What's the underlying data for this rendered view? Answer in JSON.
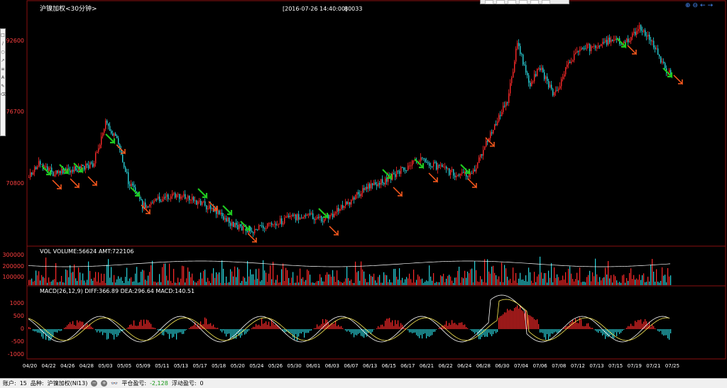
{
  "header": {
    "symbol_title": "沪镍加权<30分钟>",
    "timestamp": "[2016-07-26 14:40:00]",
    "value": "80033"
  },
  "price_axis": [
    "92600",
    "76700",
    "70800"
  ],
  "volume_panel": {
    "label": "VOL  VOLUME:56624 AMT:722106",
    "axis": [
      "300000",
      "200000",
      "100000"
    ]
  },
  "macd_panel": {
    "label": "MACD(26,12,9)  DIFF:366.89 DEA:296.64 MACD:140.51",
    "axis": [
      "1000",
      "500",
      "0",
      "-500",
      "-1000"
    ]
  },
  "date_axis": [
    "04/20",
    "04/22",
    "04/26",
    "04/28",
    "05/03",
    "05/05",
    "05/09",
    "05/11",
    "05/13",
    "05/17",
    "05/18",
    "05/20",
    "05/24",
    "05/26",
    "05/30",
    "06/01",
    "06/03",
    "06/07",
    "06/13",
    "06/15",
    "06/17",
    "06/21",
    "06/22",
    "06/24",
    "06/28",
    "06/30",
    "07/04",
    "07/06",
    "07/08",
    "07/12",
    "07/13",
    "07/15",
    "07/19",
    "07/21",
    "07/25"
  ],
  "status_bar": {
    "account_label": "账户:",
    "account_value": "15",
    "contract_label": "品种:",
    "contract_value": "沪镍加权(NI13)",
    "closed_pnl_label": "平仓盈亏:",
    "closed_pnl_value": "-2,128",
    "float_pnl_label": "浮动盈亏:",
    "float_pnl_value": "0"
  },
  "colors": {
    "up": "#ff2a2a",
    "down": "#2ad0d8",
    "buy_arrow": "#ff5a1e",
    "sell_arrow": "#1fc81f",
    "frame": "#8a1010",
    "ma_line": "#ffffff",
    "dea_line": "#ffee55"
  },
  "icons": {
    "zoom_in": "zoom-in-icon",
    "zoom_out": "zoom-out-icon",
    "pan_left": "arrow-left-icon",
    "pan_right": "arrow-right-icon"
  }
}
